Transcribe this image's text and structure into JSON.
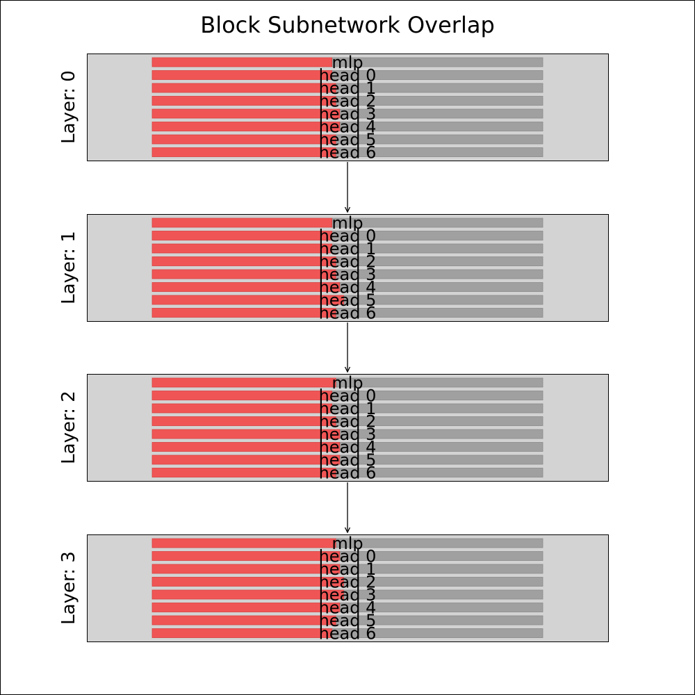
{
  "chart_data": {
    "type": "bar",
    "title": "Block Subnetwork Overlap",
    "row_names": [
      "mlp",
      "head 0",
      "head 1",
      "head 2",
      "head 3",
      "head 4",
      "head 5",
      "head 6"
    ],
    "layers": [
      {
        "label": "Layer: 0",
        "overlap": [
          0.46,
          0.46,
          0.47,
          0.47,
          0.48,
          0.48,
          0.47,
          0.47
        ]
      },
      {
        "label": "Layer: 1",
        "overlap": [
          0.46,
          0.46,
          0.46,
          0.47,
          0.47,
          0.48,
          0.49,
          0.47
        ]
      },
      {
        "label": "Layer: 2",
        "overlap": [
          0.47,
          0.46,
          0.46,
          0.47,
          0.48,
          0.48,
          0.48,
          0.47
        ]
      },
      {
        "label": "Layer: 3",
        "overlap": [
          0.47,
          0.48,
          0.48,
          0.49,
          0.49,
          0.48,
          0.47,
          0.46
        ]
      }
    ],
    "colors": {
      "overlap": "#f05555",
      "remainder": "#a0a0a0",
      "panel": "#d3d3d3",
      "border": "#000000"
    },
    "arrows_between_layers": true
  }
}
